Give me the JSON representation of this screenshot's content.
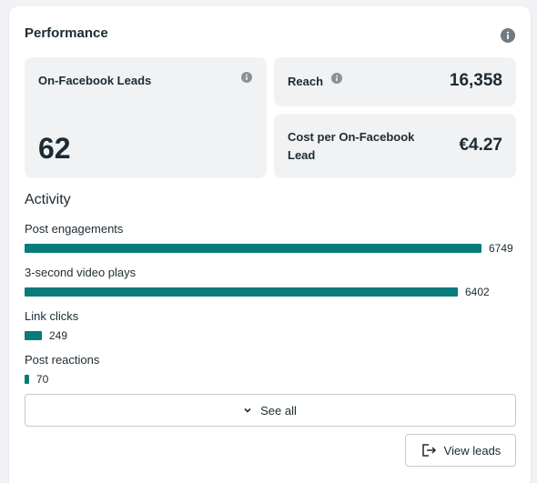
{
  "card": {
    "title": "Performance",
    "info_icon": "info-icon"
  },
  "tiles": {
    "leads": {
      "label": "On-Facebook Leads",
      "value": "62",
      "icon": "info-icon"
    },
    "reach": {
      "label": "Reach",
      "value": "16,358",
      "icon": "info-icon"
    },
    "cost": {
      "label_line1": "Cost per On-Facebook",
      "label_line2": "Lead",
      "value": "€4.27"
    }
  },
  "activity": {
    "title": "Activity",
    "bar_color": "#0a7b7b",
    "max_value": 6749,
    "metrics": [
      {
        "label": "Post engagements",
        "value": 6749,
        "display": "6749"
      },
      {
        "label": "3-second video plays",
        "value": 6402,
        "display": "6402"
      },
      {
        "label": "Link clicks",
        "value": 249,
        "display": "249"
      },
      {
        "label": "Post reactions",
        "value": 70,
        "display": "70"
      }
    ]
  },
  "actions": {
    "see_all": "See all",
    "see_all_icon": "chevron-down-icon",
    "view_leads": "View leads",
    "view_leads_icon": "export-icon"
  }
}
